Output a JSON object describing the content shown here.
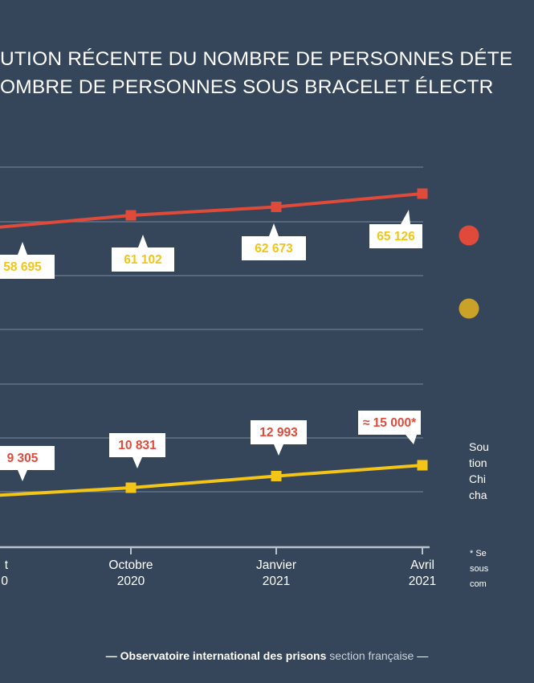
{
  "title_line1": "UTION RÉCENTE DU NOMBRE DE PERSONNES DÉTE",
  "title_line2": "OMBRE DE PERSONNES SOUS BRACELET ÉLECTR",
  "colors": {
    "background": "#35455a",
    "red": "#e04a3a",
    "yellow": "#f2c516",
    "grid": "#6e7d90"
  },
  "chart_data": {
    "type": "line",
    "categories": [
      "t\n0",
      "Octobre\n2020",
      "Janvier\n2021",
      "Avril\n2021"
    ],
    "series": [
      {
        "color": "#e04a3a",
        "values": [
          58695,
          61102,
          62673,
          65126
        ],
        "labels": [
          "58 695",
          "61 102",
          "62 673",
          "65 126"
        ],
        "label_color": "#f2c516"
      },
      {
        "color": "#f2c516",
        "values": [
          9305,
          10831,
          12993,
          15000
        ],
        "labels": [
          "9 305",
          "10 831",
          "12 993",
          "≈ 15 000*"
        ],
        "label_color": "#e04a3a"
      }
    ],
    "grid": true,
    "legend": [
      {
        "color": "#e04a3a"
      },
      {
        "color": "#c9a227"
      }
    ]
  },
  "side_note": "Sou\ntion\nChi\ncha",
  "foot_note": "* Se\nsous\ncom",
  "credit": {
    "bold": "— Observatoire international des prisons",
    "light": "section française",
    "dash": "—"
  }
}
